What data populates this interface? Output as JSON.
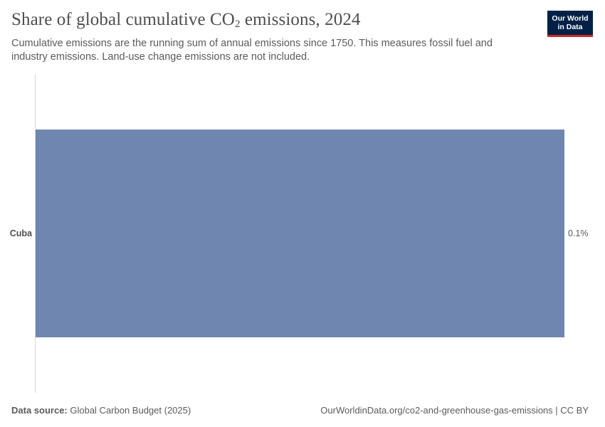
{
  "header": {
    "title_main": "Share of global cumulative CO",
    "title_sub": "2",
    "title_tail": " emissions, 2024",
    "subtitle": "Cumulative emissions are the running sum of annual emissions since 1750. This measures fossil fuel and industry emissions. Land-use change emissions are not included."
  },
  "logo": {
    "line1": "Our World",
    "line2": "in Data"
  },
  "footer": {
    "source_label": "Data source:",
    "source_text": " Global Carbon Budget (2025)",
    "url": "OurWorldinData.org/co2-and-greenhouse-gas-emissions | CC BY"
  },
  "chart_data": {
    "type": "bar",
    "orientation": "horizontal",
    "categories": [
      "Cuba"
    ],
    "values": [
      0.1
    ],
    "value_labels": [
      "0.1%"
    ],
    "unit": "%",
    "bar_color": "#6f87b0",
    "xlim": [
      0,
      0.1
    ]
  }
}
